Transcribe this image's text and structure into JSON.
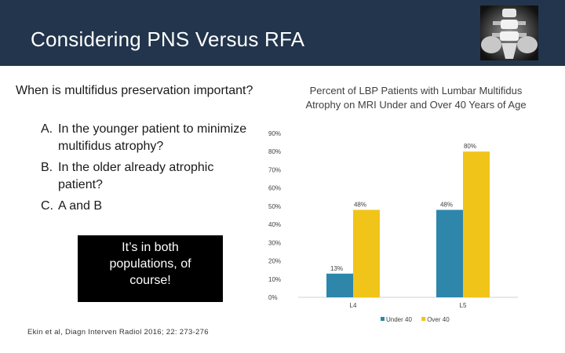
{
  "slide": {
    "title": "Considering PNS Versus RFA",
    "question": "When is multifidus preservation important?",
    "options": [
      {
        "letter": "A.",
        "text": "In the younger patient to minimize multifidus atrophy?"
      },
      {
        "letter": "B.",
        "text": "In the older already atrophic patient?"
      },
      {
        "letter": "C.",
        "text": "A and B"
      }
    ],
    "answer_lines": [
      "It’s in both",
      "populations, of",
      "course!"
    ],
    "citation": "Ekin et al, Diagn Interven Radiol 2016; 22: 273-276"
  },
  "colors": {
    "header_bg": "#22354c",
    "answer_bg": "#000000",
    "series_under_40": "#2e86ab",
    "series_over_40": "#f0c419"
  },
  "chart_data": {
    "type": "bar",
    "title": "Percent of LBP Patients with Lumbar Multifidus Atrophy on MRI Under and Over 40 Years of Age",
    "categories": [
      "L4",
      "L5"
    ],
    "series": [
      {
        "name": "Under 40",
        "values": [
          13,
          48
        ],
        "color": "#2e86ab"
      },
      {
        "name": "Over 40",
        "values": [
          48,
          80
        ],
        "color": "#f0c419"
      }
    ],
    "data_labels": [
      {
        "category": "L4",
        "series": "Under 40",
        "text": "13%"
      },
      {
        "category": "L4",
        "series": "Over 40",
        "text": "48%"
      },
      {
        "category": "L5",
        "series": "Under 40",
        "text": "48%"
      },
      {
        "category": "L5",
        "series": "Over 40",
        "text": "80%"
      }
    ],
    "yticks": [
      "0%",
      "10%",
      "20%",
      "30%",
      "40%",
      "50%",
      "60%",
      "70%",
      "80%",
      "90%"
    ],
    "ylim": [
      0,
      90
    ],
    "grid": false,
    "legend": "bottom"
  }
}
